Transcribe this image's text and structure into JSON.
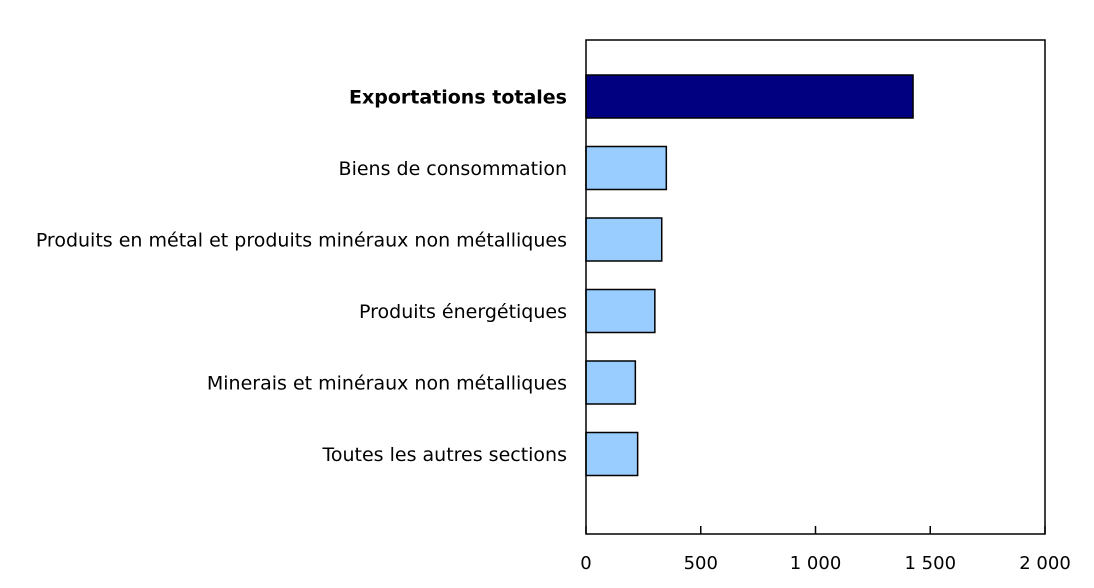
{
  "chart_data": {
    "type": "bar",
    "orientation": "horizontal",
    "title": "",
    "xlabel": "",
    "ylabel": "",
    "categories": [
      "Exportations totales",
      "Biens de consommation",
      "Produits en métal et produits minéraux non métalliques",
      "Produits énergétiques",
      "Minerais et minéraux non métalliques",
      "Toutes les autres sections"
    ],
    "values": [
      1425,
      350,
      330,
      300,
      215,
      225
    ],
    "highlight": [
      true,
      false,
      false,
      false,
      false,
      false
    ],
    "xlim": [
      0,
      2000
    ],
    "xticks": [
      0,
      500,
      1000,
      1500,
      2000
    ],
    "xtick_labels": [
      "0",
      "500",
      "1 000",
      "1 500",
      "2 000"
    ],
    "grid": false,
    "legend": "none",
    "colors": {
      "highlight_bar": "#000080",
      "bar": "#99ccff",
      "bar_stroke": "#000000",
      "axis": "#000000"
    }
  }
}
